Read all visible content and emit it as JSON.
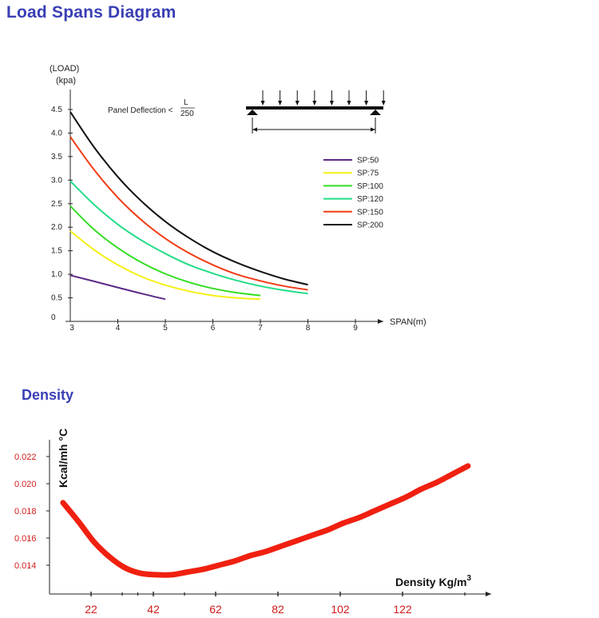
{
  "page": {
    "title": "Load Spans Diagram",
    "density_title": "Density"
  },
  "chart_data": [
    {
      "type": "line",
      "title": "Load Spans Diagram",
      "ylabel_line1": "(LOAD)",
      "ylabel_line2": "(kpa)",
      "xlabel": "SPAN(m)",
      "annotation_prefix": "Panel Deflection <",
      "annotation_num": "L",
      "annotation_den": "250",
      "xlim": [
        3,
        9.5
      ],
      "ylim": [
        0,
        4.6
      ],
      "x_ticks": [
        "3",
        "4",
        "5",
        "6",
        "7",
        "8",
        "9"
      ],
      "y_ticks": [
        "0",
        "0.5",
        "1.0",
        "1.5",
        "2.0",
        "2.5",
        "3.0",
        "3.5",
        "4.0",
        "4.5"
      ],
      "grid": false,
      "legend_position": "right",
      "series": [
        {
          "name": "SP:50",
          "color": "#5b2a86",
          "x": [
            3,
            3.5,
            4,
            4.5,
            5
          ],
          "y": [
            0.98,
            0.85,
            0.72,
            0.59,
            0.47
          ]
        },
        {
          "name": "SP:75",
          "color": "#f5ef14",
          "x": [
            3,
            3.5,
            4,
            4.5,
            5,
            5.5,
            6,
            6.5,
            7
          ],
          "y": [
            1.92,
            1.52,
            1.2,
            0.95,
            0.77,
            0.64,
            0.55,
            0.5,
            0.47
          ]
        },
        {
          "name": "SP:100",
          "color": "#33dd22",
          "x": [
            3,
            3.5,
            4,
            4.5,
            5,
            5.5,
            6,
            6.5,
            7
          ],
          "y": [
            2.45,
            1.95,
            1.56,
            1.25,
            1.01,
            0.83,
            0.7,
            0.61,
            0.55
          ]
        },
        {
          "name": "SP:120",
          "color": "#22dd88",
          "x": [
            3,
            3.5,
            4,
            4.5,
            5,
            5.5,
            6,
            6.5,
            7,
            7.5,
            8
          ],
          "y": [
            2.98,
            2.48,
            2.06,
            1.72,
            1.44,
            1.2,
            1.02,
            0.87,
            0.75,
            0.66,
            0.59
          ]
        },
        {
          "name": "SP:150",
          "color": "#f03c14",
          "x": [
            3,
            3.5,
            4,
            4.5,
            5,
            5.5,
            6,
            6.5,
            7,
            7.5,
            8
          ],
          "y": [
            3.92,
            3.22,
            2.63,
            2.15,
            1.76,
            1.45,
            1.2,
            1.0,
            0.86,
            0.75,
            0.67
          ]
        },
        {
          "name": "SP:200",
          "color": "#111111",
          "x": [
            3,
            3.5,
            4,
            4.5,
            5,
            5.5,
            6,
            6.5,
            7,
            7.5,
            8
          ],
          "y": [
            4.45,
            3.7,
            3.07,
            2.55,
            2.12,
            1.77,
            1.48,
            1.25,
            1.06,
            0.9,
            0.78
          ]
        }
      ]
    },
    {
      "type": "line",
      "title": "Density",
      "ylabel": "Kcal/mh °C",
      "xlabel_prefix": "Density  Kg/m",
      "xlabel_sup": "3",
      "x_ticks": [
        "22",
        "42",
        "62",
        "82",
        "102",
        "122"
      ],
      "y_ticks": [
        "0.014",
        "0.016",
        "0.018",
        "0.020",
        "0.022"
      ],
      "xlim": [
        10,
        150
      ],
      "ylim": [
        0.0129,
        0.0235
      ],
      "grid": false,
      "series": [
        {
          "color": "#f02010",
          "x": [
            13,
            18,
            23,
            28,
            33,
            38,
            43,
            48,
            53,
            58,
            63,
            68,
            73,
            78,
            83,
            88,
            93,
            98,
            103,
            108,
            113,
            118,
            123,
            128,
            133,
            138,
            143
          ],
          "y": [
            0.0186,
            0.0172,
            0.0157,
            0.0146,
            0.0138,
            0.0134,
            0.0133,
            0.0133,
            0.0135,
            0.0137,
            0.014,
            0.0143,
            0.0147,
            0.015,
            0.0154,
            0.0158,
            0.0162,
            0.0166,
            0.0171,
            0.0175,
            0.018,
            0.0185,
            0.019,
            0.0196,
            0.0201,
            0.0207,
            0.0213
          ]
        }
      ]
    }
  ]
}
